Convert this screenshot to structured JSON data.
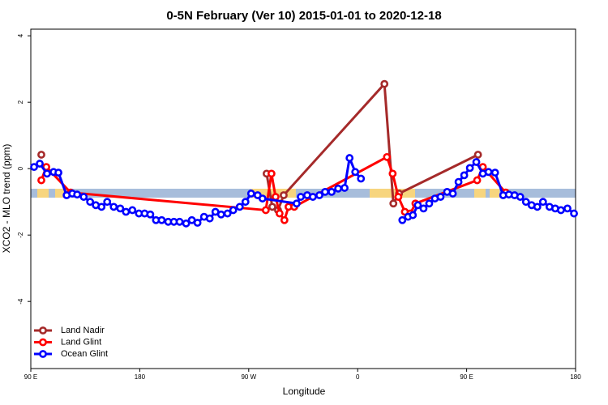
{
  "chart_data": {
    "type": "line",
    "title": "0-5N February (Ver 10)   2015-01-01 to 2020-12-18",
    "x_label": "Longitude",
    "y_label": "XCO2 - MLO trend (ppm)",
    "xlim": [
      90,
      540
    ],
    "ylim": [
      -6.02,
      4.2
    ],
    "xticks": [
      {
        "value": 90,
        "label": "90 E"
      },
      180,
      {
        "value": 270,
        "label": "90 W"
      },
      {
        "value": 360,
        "label": "0"
      },
      {
        "value": 450,
        "label": "90 E"
      },
      {
        "value": 540,
        "label": "180"
      }
    ],
    "yticks": [
      -4,
      -2,
      0,
      2,
      4
    ],
    "legend": "bottom-left",
    "series": [
      {
        "name": "Land Nadir",
        "color": "#a52a2a",
        "x": [
          98.7,
          123.6,
          284.8,
          289.5,
          294.2,
          298.9,
          382.1,
          389.5,
          394.2,
          459.4,
          482.9
        ],
        "values": [
          0.42,
          null,
          -0.15,
          -1.15,
          -1.25,
          -0.8,
          2.55,
          -1.05,
          -0.75,
          0.42,
          null
        ]
      },
      {
        "name": "Land Glint",
        "color": "#ff0000",
        "x": [
          98.7,
          102.8,
          122.9,
          284.1,
          288.8,
          292.2,
          295.5,
          299.5,
          302.9,
          307.6,
          384.2,
          388.9,
          393.6,
          399.0,
          403.6,
          407.7,
          458.7,
          463.4,
          482.3
        ],
        "values": [
          -0.35,
          0.05,
          -0.72,
          -1.25,
          -0.15,
          -0.85,
          -1.35,
          -1.55,
          -1.15,
          -1.15,
          0.35,
          -0.15,
          -0.85,
          -1.3,
          -1.35,
          -1.05,
          -0.35,
          0.05,
          -0.72
        ]
      },
      {
        "name": "Ocean Glint",
        "color": "#0000ff",
        "x": [
          92.7,
          97.4,
          103.4,
          108.8,
          112.8,
          119.6,
          124.3,
          128.3,
          133.7,
          139.0,
          143.7,
          148.4,
          153.1,
          158.5,
          163.9,
          168.6,
          173.9,
          179.3,
          184.0,
          188.7,
          193.4,
          198.1,
          203.5,
          208.2,
          212.9,
          218.3,
          223.0,
          227.7,
          233.1,
          237.8,
          242.5,
          247.2,
          252.5,
          257.2,
          262.6,
          267.3,
          272.0,
          277.4,
          281.4,
          309.6,
          313.0,
          318.3,
          323.0,
          328.4,
          333.1,
          338.5,
          343.9,
          349.2,
          353.3,
          358.0,
          362.7,
          380.0,
          396.9,
          401.6,
          405.6,
          409.7,
          414.4,
          419.1,
          423.8,
          428.5,
          433.9,
          438.6,
          443.3,
          448.0,
          452.7,
          458.0,
          463.4,
          468.1,
          473.5,
          480.2,
          484.9,
          489.6,
          494.3,
          499.0,
          503.7,
          508.4,
          513.1,
          518.5,
          523.2,
          527.9,
          533.3,
          538.7
        ],
        "values": [
          0.05,
          0.15,
          -0.15,
          -0.1,
          -0.12,
          -0.8,
          -0.75,
          -0.78,
          -0.85,
          -1.0,
          -1.1,
          -1.15,
          -1.0,
          -1.15,
          -1.2,
          -1.3,
          -1.25,
          -1.35,
          -1.35,
          -1.38,
          -1.55,
          -1.55,
          -1.6,
          -1.6,
          -1.6,
          -1.65,
          -1.55,
          -1.63,
          -1.45,
          -1.5,
          -1.3,
          -1.38,
          -1.35,
          -1.25,
          -1.15,
          -1.0,
          -0.75,
          -0.8,
          -0.9,
          -1.05,
          -0.85,
          -0.8,
          -0.85,
          -0.8,
          -0.7,
          -0.7,
          -0.6,
          -0.58,
          0.32,
          -0.1,
          -0.3,
          null,
          -1.55,
          -1.45,
          -1.4,
          -1.1,
          -1.2,
          -1.05,
          -0.9,
          -0.85,
          -0.7,
          -0.75,
          -0.4,
          -0.2,
          0.02,
          0.2,
          -0.15,
          -0.1,
          -0.12,
          -0.8,
          -0.78,
          -0.8,
          -0.85,
          -1.0,
          -1.1,
          -1.15,
          -1.0,
          -1.15,
          -1.2,
          -1.25,
          -1.2,
          -1.35
        ]
      }
    ]
  }
}
